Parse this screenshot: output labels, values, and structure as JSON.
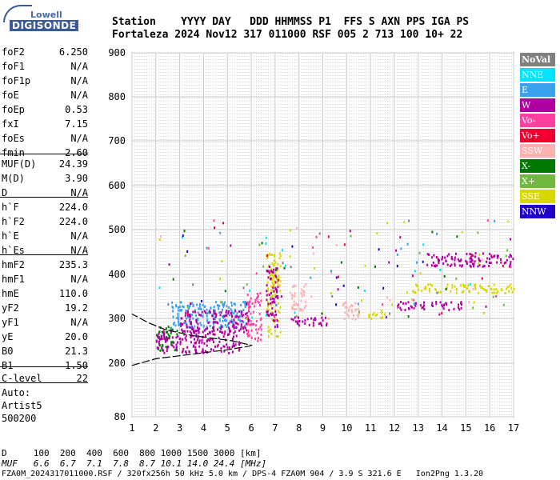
{
  "logo": {
    "top": "Lowell",
    "bottom": "DIGISONDE"
  },
  "header": {
    "line1": "Station    YYYY DAY   DDD HHMMSS P1  FFS S AXN PPS IGA PS",
    "line2": "Fortaleza 2024 Nov12 317 011000 RSF 005 2 713 100 10+ 22"
  },
  "params": [
    {
      "name": "foF2",
      "value": "6.250"
    },
    {
      "name": "foF1",
      "value": "N/A"
    },
    {
      "name": "foF1p",
      "value": "N/A"
    },
    {
      "name": "foE",
      "value": "N/A"
    },
    {
      "name": "foEp",
      "value": "0.53"
    },
    {
      "name": "fxI",
      "value": "7.15"
    },
    {
      "name": "foEs",
      "value": "N/A"
    },
    {
      "name": "fmin",
      "value": "2.60"
    },
    {
      "name": "MUF(D)",
      "value": "24.39"
    },
    {
      "name": "M(D)",
      "value": "3.90"
    },
    {
      "name": "D",
      "value": "N/A"
    },
    {
      "name": "h`F",
      "value": "224.0"
    },
    {
      "name": "h`F2",
      "value": "224.0"
    },
    {
      "name": "h`E",
      "value": "N/A"
    },
    {
      "name": "h`Es",
      "value": "N/A"
    },
    {
      "name": "hmF2",
      "value": "235.3"
    },
    {
      "name": "hmF1",
      "value": "N/A"
    },
    {
      "name": "hmE",
      "value": "110.0"
    },
    {
      "name": "yF2",
      "value": "19.2"
    },
    {
      "name": "yF1",
      "value": "N/A"
    },
    {
      "name": "yE",
      "value": "20.0"
    },
    {
      "name": "B0",
      "value": "21.3"
    },
    {
      "name": "B1",
      "value": "1.50"
    },
    {
      "name": "C-level",
      "value": "22"
    }
  ],
  "auto": {
    "line1": "Auto:",
    "line2": "Artist5",
    "line3": "500200"
  },
  "legend": [
    {
      "label": "NoVal",
      "color": "#808080"
    },
    {
      "label": "NNE",
      "color": "#00e5ff"
    },
    {
      "label": "E",
      "color": "#3aa0f0"
    },
    {
      "label": "W",
      "color": "#b000a0"
    },
    {
      "label": "Vo-",
      "color": "#ff40a0"
    },
    {
      "label": "Vo+",
      "color": "#f00030"
    },
    {
      "label": "SSW",
      "color": "#ffb0b0"
    },
    {
      "label": "X-",
      "color": "#007800"
    },
    {
      "label": "X+",
      "color": "#70b840"
    },
    {
      "label": "SSE",
      "color": "#d8d800"
    },
    {
      "label": "NNW",
      "color": "#2000c8"
    }
  ],
  "footer": {
    "d_line": "D     100  200  400  600  800 1000 1500 3000 [km]",
    "muf_line": "MUF   6.6  6.7  7.1  7.8  8.7 10.1 14.0 24.4 [MHz]",
    "file_line": "FZA0M_2024317011000.RSF / 320fx256h 50 kHz 5.0 km / DPS-4 FZA0M 904 / 3.9 S 321.6 E   Ion2Png 1.3.20"
  },
  "chart_data": {
    "type": "scatter",
    "xlim": [
      1,
      17
    ],
    "ylim": [
      80,
      900
    ],
    "x_ticks": [
      "1",
      "2",
      "3",
      "4",
      "5",
      "6",
      "7",
      "8",
      "9",
      "10",
      "11",
      "12",
      "13",
      "14",
      "15",
      "16",
      "17"
    ],
    "y_ticks": [
      "80",
      "200",
      "300",
      "400",
      "500",
      "600",
      "700",
      "800",
      "900"
    ],
    "grid": true,
    "echo_clusters": [
      {
        "x": [
          2.0,
          2.9
        ],
        "y": [
          230,
          285
        ],
        "color": "#008000"
      },
      {
        "x": [
          2.0,
          5.6
        ],
        "y": [
          225,
          275
        ],
        "color": "#b000a0"
      },
      {
        "x": [
          2.6,
          5.8
        ],
        "y": [
          280,
          340
        ],
        "color": "#3aa0f0"
      },
      {
        "x": [
          3.0,
          5.9
        ],
        "y": [
          270,
          320
        ],
        "color": "#b000a0"
      },
      {
        "x": [
          5.8,
          6.4
        ],
        "y": [
          250,
          360
        ],
        "color": "#ff40a0"
      },
      {
        "x": [
          6.6,
          7.2
        ],
        "y": [
          260,
          450
        ],
        "color": "#d8d800"
      },
      {
        "x": [
          6.6,
          7.1
        ],
        "y": [
          280,
          420
        ],
        "color": "#b000a0"
      },
      {
        "x": [
          7.6,
          8.3
        ],
        "y": [
          320,
          380
        ],
        "color": "#ffb0b0"
      },
      {
        "x": [
          7.6,
          9.2
        ],
        "y": [
          285,
          305
        ],
        "color": "#b000a0"
      },
      {
        "x": [
          9.8,
          10.6
        ],
        "y": [
          300,
          340
        ],
        "color": "#ffb0b0"
      },
      {
        "x": [
          10.9,
          11.6
        ],
        "y": [
          300,
          320
        ],
        "color": "#d8d800"
      },
      {
        "x": [
          12.1,
          14.8
        ],
        "y": [
          320,
          340
        ],
        "color": "#b000a0"
      },
      {
        "x": [
          12.7,
          17.0
        ],
        "y": [
          360,
          380
        ],
        "color": "#d8d800"
      },
      {
        "x": [
          13.3,
          17.0
        ],
        "y": [
          420,
          450
        ],
        "color": "#b000a0"
      }
    ],
    "profile_curve": [
      [
        1.0,
        195
      ],
      [
        2.0,
        210
      ],
      [
        3.5,
        220
      ],
      [
        5.0,
        230
      ],
      [
        5.9,
        238
      ],
      [
        6.0,
        240
      ],
      [
        5.2,
        250
      ],
      [
        3.5,
        262
      ],
      [
        2.4,
        275
      ],
      [
        1.7,
        290
      ],
      [
        1.0,
        310
      ]
    ]
  }
}
